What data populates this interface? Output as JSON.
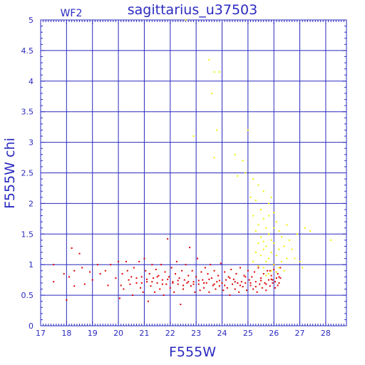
{
  "chart_data": {
    "type": "scatter",
    "title": "sagittarius_u37503",
    "corner_label": "WF2",
    "xlabel": "F555W",
    "ylabel": "F555W chi",
    "xlim": [
      17,
      28.8
    ],
    "ylim": [
      0,
      5
    ],
    "xticks": [
      "17",
      "18",
      "19",
      "20",
      "21",
      "22",
      "23",
      "24",
      "25",
      "26",
      "27",
      "28"
    ],
    "yticks": [
      "0",
      "0.5",
      "1",
      "1.5",
      "2",
      "2.5",
      "3",
      "3.5",
      "4",
      "4.5",
      "5"
    ],
    "grid": true,
    "colors": {
      "axis": "#2a2ac0",
      "grid": "#2a2ac0",
      "red": "#dd0000",
      "yellow": "#f0f000"
    },
    "series": [
      {
        "color": "#dd0000",
        "points": [
          [
            17.5,
            1.0
          ],
          [
            17.5,
            0.72
          ],
          [
            17.9,
            0.85
          ],
          [
            18.0,
            0.42
          ],
          [
            18.1,
            0.8
          ],
          [
            18.2,
            1.27
          ],
          [
            18.3,
            0.9
          ],
          [
            18.3,
            0.65
          ],
          [
            18.5,
            1.18
          ],
          [
            18.6,
            0.95
          ],
          [
            18.7,
            0.68
          ],
          [
            18.9,
            0.88
          ],
          [
            19.0,
            0.75
          ],
          [
            19.2,
            1.0
          ],
          [
            19.3,
            0.85
          ],
          [
            19.5,
            0.9
          ],
          [
            19.6,
            0.66
          ],
          [
            19.7,
            1.0
          ],
          [
            19.9,
            0.78
          ],
          [
            20.0,
            1.05
          ],
          [
            20.05,
            0.45
          ],
          [
            20.1,
            0.66
          ],
          [
            20.15,
            0.85
          ],
          [
            20.2,
            0.6
          ],
          [
            20.3,
            1.05
          ],
          [
            20.35,
            0.9
          ],
          [
            20.4,
            0.75
          ],
          [
            20.45,
            0.68
          ],
          [
            20.5,
            0.8
          ],
          [
            20.55,
            0.5
          ],
          [
            20.6,
            0.95
          ],
          [
            20.7,
            0.7
          ],
          [
            20.8,
            1.05
          ],
          [
            20.85,
            0.62
          ],
          [
            20.9,
            0.8
          ],
          [
            20.95,
            0.55
          ],
          [
            21.0,
            1.1
          ],
          [
            21.05,
            0.9
          ],
          [
            21.1,
            0.72
          ],
          [
            21.15,
            0.4
          ],
          [
            21.2,
            0.85
          ],
          [
            21.25,
            0.65
          ],
          [
            21.3,
            1.0
          ],
          [
            21.35,
            0.78
          ],
          [
            21.4,
            0.55
          ],
          [
            21.45,
            0.92
          ],
          [
            21.5,
            0.7
          ],
          [
            21.55,
            0.82
          ],
          [
            21.6,
            0.6
          ],
          [
            21.65,
            1.0
          ],
          [
            21.7,
            0.75
          ],
          [
            21.75,
            0.5
          ],
          [
            21.8,
            0.88
          ],
          [
            21.85,
            0.68
          ],
          [
            21.9,
            1.42
          ],
          [
            21.95,
            0.8
          ],
          [
            22.0,
            0.62
          ],
          [
            22.05,
            0.95
          ],
          [
            22.1,
            0.72
          ],
          [
            22.15,
            0.55
          ],
          [
            22.2,
            0.85
          ],
          [
            22.25,
            1.05
          ],
          [
            22.3,
            0.68
          ],
          [
            22.35,
            0.78
          ],
          [
            22.4,
            0.35
          ],
          [
            22.45,
            0.9
          ],
          [
            22.5,
            0.6
          ],
          [
            22.55,
            0.75
          ],
          [
            22.6,
            1.0
          ],
          [
            22.65,
            0.7
          ],
          [
            22.7,
            0.82
          ],
          [
            22.75,
            1.28
          ],
          [
            22.8,
            0.65
          ],
          [
            22.85,
            0.9
          ],
          [
            22.9,
            0.72
          ],
          [
            22.95,
            0.55
          ],
          [
            23.0,
            0.8
          ],
          [
            23.05,
            1.1
          ],
          [
            23.1,
            0.68
          ],
          [
            23.15,
            0.58
          ],
          [
            23.2,
            0.88
          ],
          [
            23.25,
            0.75
          ],
          [
            23.3,
            0.62
          ],
          [
            23.35,
            0.95
          ],
          [
            23.4,
            0.7
          ],
          [
            23.45,
            0.85
          ],
          [
            23.5,
            0.55
          ],
          [
            23.55,
            1.0
          ],
          [
            23.6,
            0.78
          ],
          [
            23.65,
            0.66
          ],
          [
            23.7,
            0.9
          ],
          [
            23.75,
            0.6
          ],
          [
            23.8,
            0.72
          ],
          [
            23.85,
            0.82
          ],
          [
            23.9,
            0.65
          ],
          [
            23.95,
            1.02
          ],
          [
            24.0,
            0.7
          ],
          [
            24.05,
            0.58
          ],
          [
            24.1,
            0.88
          ],
          [
            24.15,
            0.75
          ],
          [
            24.2,
            0.62
          ],
          [
            24.25,
            0.8
          ],
          [
            24.3,
            0.5
          ],
          [
            24.35,
            0.92
          ],
          [
            24.4,
            0.68
          ],
          [
            24.45,
            0.76
          ],
          [
            24.5,
            0.6
          ],
          [
            24.55,
            0.85
          ],
          [
            24.6,
            0.7
          ],
          [
            24.65,
            0.55
          ],
          [
            24.7,
            0.95
          ],
          [
            24.75,
            0.72
          ],
          [
            24.8,
            0.64
          ],
          [
            24.85,
            0.82
          ],
          [
            24.9,
            0.7
          ],
          [
            24.95,
            0.58
          ],
          [
            25.0,
            0.9
          ],
          [
            25.05,
            0.75
          ],
          [
            25.1,
            0.66
          ],
          [
            25.15,
            0.8
          ],
          [
            25.2,
            0.6
          ],
          [
            25.25,
            0.88
          ],
          [
            25.3,
            0.72
          ],
          [
            25.35,
            0.55
          ],
          [
            25.4,
            0.95
          ],
          [
            25.45,
            0.68
          ],
          [
            25.5,
            0.78
          ],
          [
            25.55,
            0.62
          ],
          [
            25.6,
            0.85
          ],
          [
            25.65,
            0.7
          ],
          [
            25.7,
            0.58
          ],
          [
            25.75,
            0.9
          ],
          [
            25.8,
            0.75
          ],
          [
            25.85,
            0.65
          ],
          [
            25.9,
            0.82
          ],
          [
            25.95,
            0.7
          ],
          [
            26.0,
            0.92
          ],
          [
            26.05,
            0.62
          ],
          [
            26.1,
            0.78
          ],
          [
            26.15,
            0.85
          ],
          [
            26.2,
            0.7
          ],
          [
            26.25,
            0.95
          ],
          [
            26.0,
            1.0
          ],
          [
            26.1,
            0.88
          ],
          [
            26.2,
            0.8
          ],
          [
            25.95,
            0.75
          ],
          [
            26.05,
            0.72
          ],
          [
            26.15,
            0.66
          ],
          [
            26.25,
            0.78
          ],
          [
            25.85,
            0.9
          ],
          [
            24.5,
            0.72
          ],
          [
            24.7,
            0.66
          ],
          [
            24.9,
            0.8
          ],
          [
            25.1,
            0.7
          ],
          [
            25.3,
            0.64
          ],
          [
            25.5,
            0.74
          ],
          [
            25.7,
            0.68
          ],
          [
            25.9,
            0.76
          ],
          [
            24.3,
            0.78
          ],
          [
            24.1,
            0.66
          ],
          [
            23.9,
            0.74
          ],
          [
            23.7,
            0.68
          ],
          [
            23.5,
            0.76
          ],
          [
            23.3,
            0.7
          ],
          [
            23.1,
            0.74
          ],
          [
            22.9,
            0.68
          ],
          [
            22.7,
            0.72
          ],
          [
            22.5,
            0.66
          ],
          [
            22.3,
            0.74
          ],
          [
            22.1,
            0.7
          ],
          [
            21.9,
            0.76
          ],
          [
            21.7,
            0.68
          ],
          [
            21.5,
            0.8
          ],
          [
            21.3,
            0.72
          ],
          [
            21.1,
            0.76
          ],
          [
            20.9,
            0.7
          ],
          [
            20.7,
            0.78
          ]
        ]
      },
      {
        "color": "#f0f000",
        "points": [
          [
            22.6,
            5.0
          ],
          [
            23.5,
            4.35
          ],
          [
            23.7,
            4.15
          ],
          [
            23.9,
            4.15
          ],
          [
            23.6,
            3.8
          ],
          [
            23.8,
            3.2
          ],
          [
            22.9,
            3.1
          ],
          [
            23.7,
            2.75
          ],
          [
            24.5,
            2.8
          ],
          [
            24.8,
            2.7
          ],
          [
            25.0,
            3.2
          ],
          [
            24.9,
            2.5
          ],
          [
            24.6,
            2.45
          ],
          [
            25.2,
            2.4
          ],
          [
            25.4,
            2.3
          ],
          [
            25.1,
            2.1
          ],
          [
            25.6,
            2.2
          ],
          [
            25.3,
            2.05
          ],
          [
            25.8,
            2.0
          ],
          [
            25.5,
            1.9
          ],
          [
            25.9,
            2.1
          ],
          [
            25.2,
            1.8
          ],
          [
            25.6,
            1.75
          ],
          [
            26.0,
            1.85
          ],
          [
            25.4,
            1.65
          ],
          [
            25.7,
            1.6
          ],
          [
            26.1,
            1.7
          ],
          [
            25.3,
            1.55
          ],
          [
            25.8,
            1.5
          ],
          [
            26.2,
            1.55
          ],
          [
            25.5,
            1.45
          ],
          [
            25.9,
            1.4
          ],
          [
            26.3,
            1.45
          ],
          [
            25.4,
            1.35
          ],
          [
            25.7,
            1.3
          ],
          [
            26.0,
            1.35
          ],
          [
            26.4,
            1.3
          ],
          [
            25.6,
            1.25
          ],
          [
            25.9,
            1.2
          ],
          [
            26.2,
            1.25
          ],
          [
            25.5,
            1.15
          ],
          [
            25.8,
            1.1
          ],
          [
            26.1,
            1.15
          ],
          [
            26.5,
            1.1
          ],
          [
            25.7,
            1.05
          ],
          [
            26.0,
            1.0
          ],
          [
            26.3,
            1.05
          ],
          [
            25.6,
            0.95
          ],
          [
            25.9,
            0.9
          ],
          [
            26.2,
            0.95
          ],
          [
            25.8,
            0.85
          ],
          [
            26.1,
            0.88
          ],
          [
            25.7,
            0.82
          ],
          [
            26.4,
            0.9
          ],
          [
            26.7,
            1.25
          ],
          [
            26.9,
            1.5
          ],
          [
            27.2,
            1.6
          ],
          [
            27.4,
            1.55
          ],
          [
            28.2,
            1.4
          ],
          [
            26.8,
            1.1
          ],
          [
            27.0,
            1.05
          ],
          [
            26.6,
            1.4
          ],
          [
            26.5,
            1.65
          ],
          [
            27.1,
            0.95
          ],
          [
            25.3,
            1.2
          ],
          [
            25.2,
            1.05
          ],
          [
            25.4,
            0.98
          ],
          [
            25.6,
            1.38
          ],
          [
            26.0,
            1.6
          ],
          [
            25.8,
            1.8
          ]
        ]
      }
    ]
  }
}
